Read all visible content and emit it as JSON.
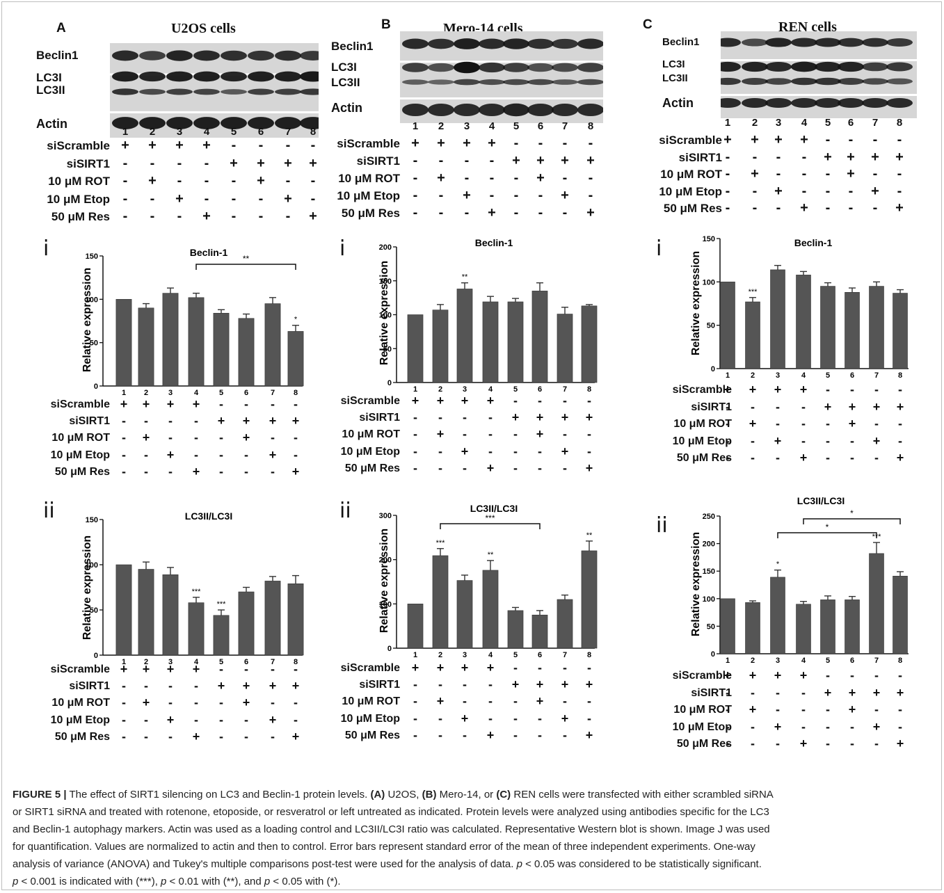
{
  "panels": [
    {
      "letter": "A",
      "cell_line": "U2OS cells",
      "bands": [
        "Beclin1",
        "LC3I",
        "LC3II",
        "Actin"
      ],
      "lanes": [
        "1",
        "2",
        "3",
        "4",
        "5",
        "6",
        "7",
        "8"
      ],
      "conditions": [
        {
          "label": "siScramble",
          "signs": [
            "+",
            "+",
            "+",
            "+",
            "-",
            "-",
            "-",
            "-"
          ]
        },
        {
          "label": "siSIRT1",
          "signs": [
            "-",
            "-",
            "-",
            "-",
            "+",
            "+",
            "+",
            "+"
          ]
        },
        {
          "label": "10 μM ROT",
          "signs": [
            "-",
            "+",
            "-",
            "-",
            "-",
            "+",
            "-",
            "-"
          ]
        },
        {
          "label": "10 μM Etop",
          "signs": [
            "-",
            "-",
            "+",
            "-",
            "-",
            "-",
            "+",
            "-"
          ]
        },
        {
          "label": "50 μM Res",
          "signs": [
            "-",
            "-",
            "-",
            "+",
            "-",
            "-",
            "-",
            "+"
          ]
        }
      ]
    },
    {
      "letter": "B",
      "cell_line": "Mero-14 cells",
      "bands": [
        "Beclin1",
        "LC3I",
        "LC3II",
        "Actin"
      ],
      "lanes": [
        "1",
        "2",
        "3",
        "4",
        "5",
        "6",
        "7",
        "8"
      ],
      "conditions": [
        {
          "label": "siScramble",
          "signs": [
            "+",
            "+",
            "+",
            "+",
            "-",
            "-",
            "-",
            "-"
          ]
        },
        {
          "label": "siSIRT1",
          "signs": [
            "-",
            "-",
            "-",
            "-",
            "+",
            "+",
            "+",
            "+"
          ]
        },
        {
          "label": "10 μM ROT",
          "signs": [
            "-",
            "+",
            "-",
            "-",
            "-",
            "+",
            "-",
            "-"
          ]
        },
        {
          "label": "10 μM Etop",
          "signs": [
            "-",
            "-",
            "+",
            "-",
            "-",
            "-",
            "+",
            "-"
          ]
        },
        {
          "label": "50 μM Res",
          "signs": [
            "-",
            "-",
            "-",
            "+",
            "-",
            "-",
            "-",
            "+"
          ]
        }
      ]
    },
    {
      "letter": "C",
      "cell_line": "REN cells",
      "bands": [
        "Beclin1",
        "LC3I",
        "LC3II",
        "Actin"
      ],
      "lanes": [
        "1",
        "2",
        "3",
        "4",
        "5",
        "6",
        "7",
        "8"
      ],
      "conditions": [
        {
          "label": "siScramble",
          "signs": [
            "+",
            "+",
            "+",
            "+",
            "-",
            "-",
            "-",
            "-"
          ]
        },
        {
          "label": "siSIRT1",
          "signs": [
            "-",
            "-",
            "-",
            "-",
            "+",
            "+",
            "+",
            "+"
          ]
        },
        {
          "label": "10 μM ROT",
          "signs": [
            "-",
            "+",
            "-",
            "-",
            "-",
            "+",
            "-",
            "-"
          ]
        },
        {
          "label": "10 μM Etop",
          "signs": [
            "-",
            "-",
            "+",
            "-",
            "-",
            "-",
            "+",
            "-"
          ]
        },
        {
          "label": "50 μM Res",
          "signs": [
            "-",
            "-",
            "-",
            "+",
            "-",
            "-",
            "-",
            "+"
          ]
        }
      ]
    }
  ],
  "chart_data": [
    {
      "id": "A-i",
      "panel": "A",
      "roman": "i",
      "type": "bar",
      "title": "Beclin-1",
      "ylabel": "Relative expression",
      "categories": [
        "1",
        "2",
        "3",
        "4",
        "5",
        "6",
        "7",
        "8"
      ],
      "values": [
        100,
        90,
        107,
        102,
        84,
        78,
        95,
        63
      ],
      "errors": [
        0,
        5,
        6,
        5,
        4,
        5,
        7,
        7
      ],
      "ylim": [
        0,
        150
      ],
      "yticks": [
        0,
        50,
        100,
        150
      ],
      "stars": [
        {
          "bar": 8,
          "text": "*"
        }
      ],
      "brackets": [
        {
          "from": 4,
          "to": 8,
          "text": "**"
        }
      ]
    },
    {
      "id": "A-ii",
      "panel": "A",
      "roman": "ii",
      "type": "bar",
      "title": "LC3II/LC3I",
      "ylabel": "Relative expression",
      "categories": [
        "1",
        "2",
        "3",
        "4",
        "5",
        "6",
        "7",
        "8"
      ],
      "values": [
        100,
        95,
        89,
        58,
        44,
        70,
        82,
        79
      ],
      "errors": [
        0,
        8,
        8,
        6,
        6,
        5,
        5,
        9
      ],
      "ylim": [
        0,
        150
      ],
      "yticks": [
        0,
        50,
        100,
        150
      ],
      "stars": [
        {
          "bar": 4,
          "text": "***"
        },
        {
          "bar": 5,
          "text": "***"
        }
      ],
      "brackets": []
    },
    {
      "id": "B-i",
      "panel": "B",
      "roman": "i",
      "type": "bar",
      "title": "Beclin-1",
      "ylabel": "Relative expression",
      "categories": [
        "1",
        "2",
        "3",
        "4",
        "5",
        "6",
        "7",
        "8"
      ],
      "values": [
        100,
        107,
        138,
        119,
        119,
        135,
        101,
        113
      ],
      "errors": [
        0,
        8,
        9,
        8,
        5,
        12,
        10,
        2
      ],
      "ylim": [
        0,
        200
      ],
      "yticks": [
        0,
        50,
        100,
        150,
        200
      ],
      "stars": [
        {
          "bar": 3,
          "text": "**"
        }
      ],
      "brackets": []
    },
    {
      "id": "B-ii",
      "panel": "B",
      "roman": "ii",
      "type": "bar",
      "title": "LC3II/LC3I",
      "ylabel": "Relative expression",
      "categories": [
        "1",
        "2",
        "3",
        "4",
        "5",
        "6",
        "7",
        "8"
      ],
      "values": [
        100,
        209,
        153,
        176,
        85,
        75,
        110,
        220
      ],
      "errors": [
        0,
        16,
        12,
        22,
        7,
        10,
        10,
        22
      ],
      "ylim": [
        0,
        300
      ],
      "yticks": [
        0,
        100,
        200,
        300
      ],
      "stars": [
        {
          "bar": 2,
          "text": "***"
        },
        {
          "bar": 4,
          "text": "**"
        },
        {
          "bar": 8,
          "text": "**"
        }
      ],
      "brackets": [
        {
          "from": 2,
          "to": 6,
          "text": "***"
        }
      ]
    },
    {
      "id": "C-i",
      "panel": "C",
      "roman": "i",
      "type": "bar",
      "title": "Beclin-1",
      "ylabel": "Relative expression",
      "categories": [
        "1",
        "2",
        "3",
        "4",
        "5",
        "6",
        "7",
        "8"
      ],
      "values": [
        100,
        77,
        114,
        108,
        95,
        88,
        95,
        87
      ],
      "errors": [
        0,
        5,
        5,
        4,
        4,
        5,
        5,
        4
      ],
      "ylim": [
        0,
        150
      ],
      "yticks": [
        0,
        50,
        100,
        150
      ],
      "stars": [
        {
          "bar": 2,
          "text": "***"
        }
      ],
      "brackets": []
    },
    {
      "id": "C-ii",
      "panel": "C",
      "roman": "ii",
      "type": "bar",
      "title": "LC3II/LC3I",
      "ylabel": "Relative expression",
      "categories": [
        "1",
        "2",
        "3",
        "4",
        "5",
        "6",
        "7",
        "8"
      ],
      "values": [
        100,
        93,
        139,
        90,
        98,
        98,
        182,
        141
      ],
      "errors": [
        0,
        3,
        13,
        5,
        7,
        6,
        20,
        8
      ],
      "ylim": [
        0,
        250
      ],
      "yticks": [
        0,
        50,
        100,
        150,
        200,
        250
      ],
      "stars": [
        {
          "bar": 3,
          "text": "*"
        },
        {
          "bar": 7,
          "text": "***"
        }
      ],
      "brackets": [
        {
          "from": 3,
          "to": 7,
          "text": "*"
        },
        {
          "from": 4,
          "to": 8,
          "text": "*"
        }
      ]
    }
  ],
  "caption": {
    "figure_label": "FIGURE 5 |",
    "lines": [
      [
        {
          "t": " The effect of SIRT1 silencing on LC3 and Beclin-1 protein levels. "
        },
        {
          "t": "(A)",
          "b": true
        },
        {
          "t": " U2OS, "
        },
        {
          "t": "(B)",
          "b": true
        },
        {
          "t": " Mero-14, or "
        },
        {
          "t": "(C)",
          "b": true
        },
        {
          "t": " REN cells were transfected with either scrambled siRNA"
        }
      ],
      [
        {
          "t": "or SIRT1 siRNA and treated with rotenone, etoposide, or resveratrol or left untreated as indicated. Protein levels were analyzed using antibodies specific for the LC3"
        }
      ],
      [
        {
          "t": "and Beclin-1 autophagy markers. Actin was used as a loading control and LC3II/LC3I ratio was calculated. Representative Western blot is shown. Image J was used"
        }
      ],
      [
        {
          "t": "for quantification. Values are normalized to actin and then to control. Error bars represent standard error of the mean of three independent experiments. One-way"
        }
      ],
      [
        {
          "t": "analysis of variance (ANOVA) and Tukey's multiple comparisons post-test were used for the analysis of data. "
        },
        {
          "t": "p",
          "i": true
        },
        {
          "t": " < 0.05 was considered to be statistically significant."
        }
      ],
      [
        {
          "t": "p",
          "i": true
        },
        {
          "t": " < 0.001 is indicated with (***), "
        },
        {
          "t": "p",
          "i": true
        },
        {
          "t": " < 0.01 with (**), and "
        },
        {
          "t": "p",
          "i": true
        },
        {
          "t": " < 0.05 with (*)."
        }
      ]
    ]
  },
  "colors": {
    "bar": "#555555",
    "band": "#1a1a1a",
    "blot_bg": "#d6d6d6"
  }
}
